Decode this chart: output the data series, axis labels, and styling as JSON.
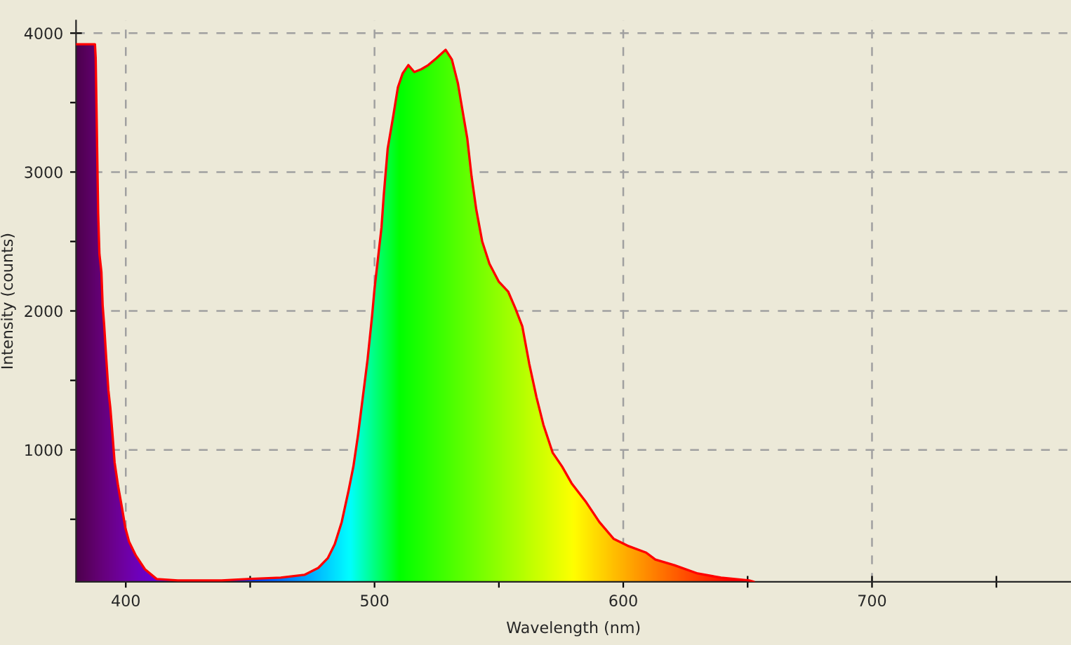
{
  "chart_data": {
    "type": "line",
    "xlabel": "Wavelength (nm)",
    "ylabel": "Intensity (counts)",
    "xlim": [
      380,
      780
    ],
    "ylim": [
      50,
      4090
    ],
    "xticks": [
      400,
      {
        "value": 450,
        "label": null
      },
      500,
      {
        "value": 550,
        "label": null
      },
      600,
      {
        "value": 650,
        "label": null
      },
      700,
      {
        "value": 750,
        "label": null
      }
    ],
    "yticks": [
      {
        "value": 500,
        "label": null
      },
      1000,
      {
        "value": 1500,
        "label": null
      },
      2000,
      {
        "value": 2500,
        "label": null
      },
      3000,
      {
        "value": 3500,
        "label": null
      },
      4000
    ],
    "grid": true,
    "series": [
      {
        "color": "#ff0000",
        "x": [
          380,
          387.6,
          387.9,
          388.3,
          388.9,
          389.4,
          390.2,
          390.7,
          391.3,
          392.1,
          393.0,
          393.8,
          394.7,
          395.5,
          396.9,
          398.5,
          399.8,
          401.3,
          404.0,
          407.7,
          412.4,
          420.9,
          438.5,
          449.1,
          462.3,
          471.8,
          477.4,
          481.2,
          484.0,
          486.8,
          489.6,
          491.5,
          493.4,
          495.3,
          497.2,
          499.0,
          500.0,
          502.8,
          503.7,
          505.3,
          507.5,
          509.4,
          511.3,
          513.6,
          516.0,
          518.8,
          521.6,
          524.9,
          528.6,
          531.1,
          533.5,
          535.4,
          537.3,
          539.0,
          540.9,
          543.3,
          546.2,
          550.0,
          553.7,
          556.6,
          559.4,
          562.2,
          565.1,
          567.9,
          571.6,
          575.4,
          579.2,
          584.8,
          590.4,
          596.1,
          601.7,
          609.2,
          612.9,
          616.7,
          620.5,
          629.9,
          639.3,
          650.6,
          652.5
        ],
        "values": [
          3920,
          3920,
          3820,
          3380,
          2700,
          2410,
          2280,
          2040,
          1900,
          1670,
          1430,
          1300,
          1100,
          910,
          740,
          580,
          440,
          340,
          240,
          140,
          70,
          60,
          60,
          70,
          80,
          100,
          150,
          220,
          320,
          480,
          710,
          880,
          1110,
          1380,
          1650,
          1960,
          2160,
          2600,
          2830,
          3170,
          3400,
          3610,
          3710,
          3770,
          3720,
          3740,
          3770,
          3820,
          3880,
          3810,
          3640,
          3440,
          3240,
          2970,
          2730,
          2500,
          2340,
          2210,
          2140,
          2020,
          1890,
          1620,
          1380,
          1180,
          980,
          880,
          760,
          630,
          480,
          360,
          310,
          260,
          210,
          190,
          170,
          110,
          80,
          60,
          50
        ]
      }
    ]
  }
}
